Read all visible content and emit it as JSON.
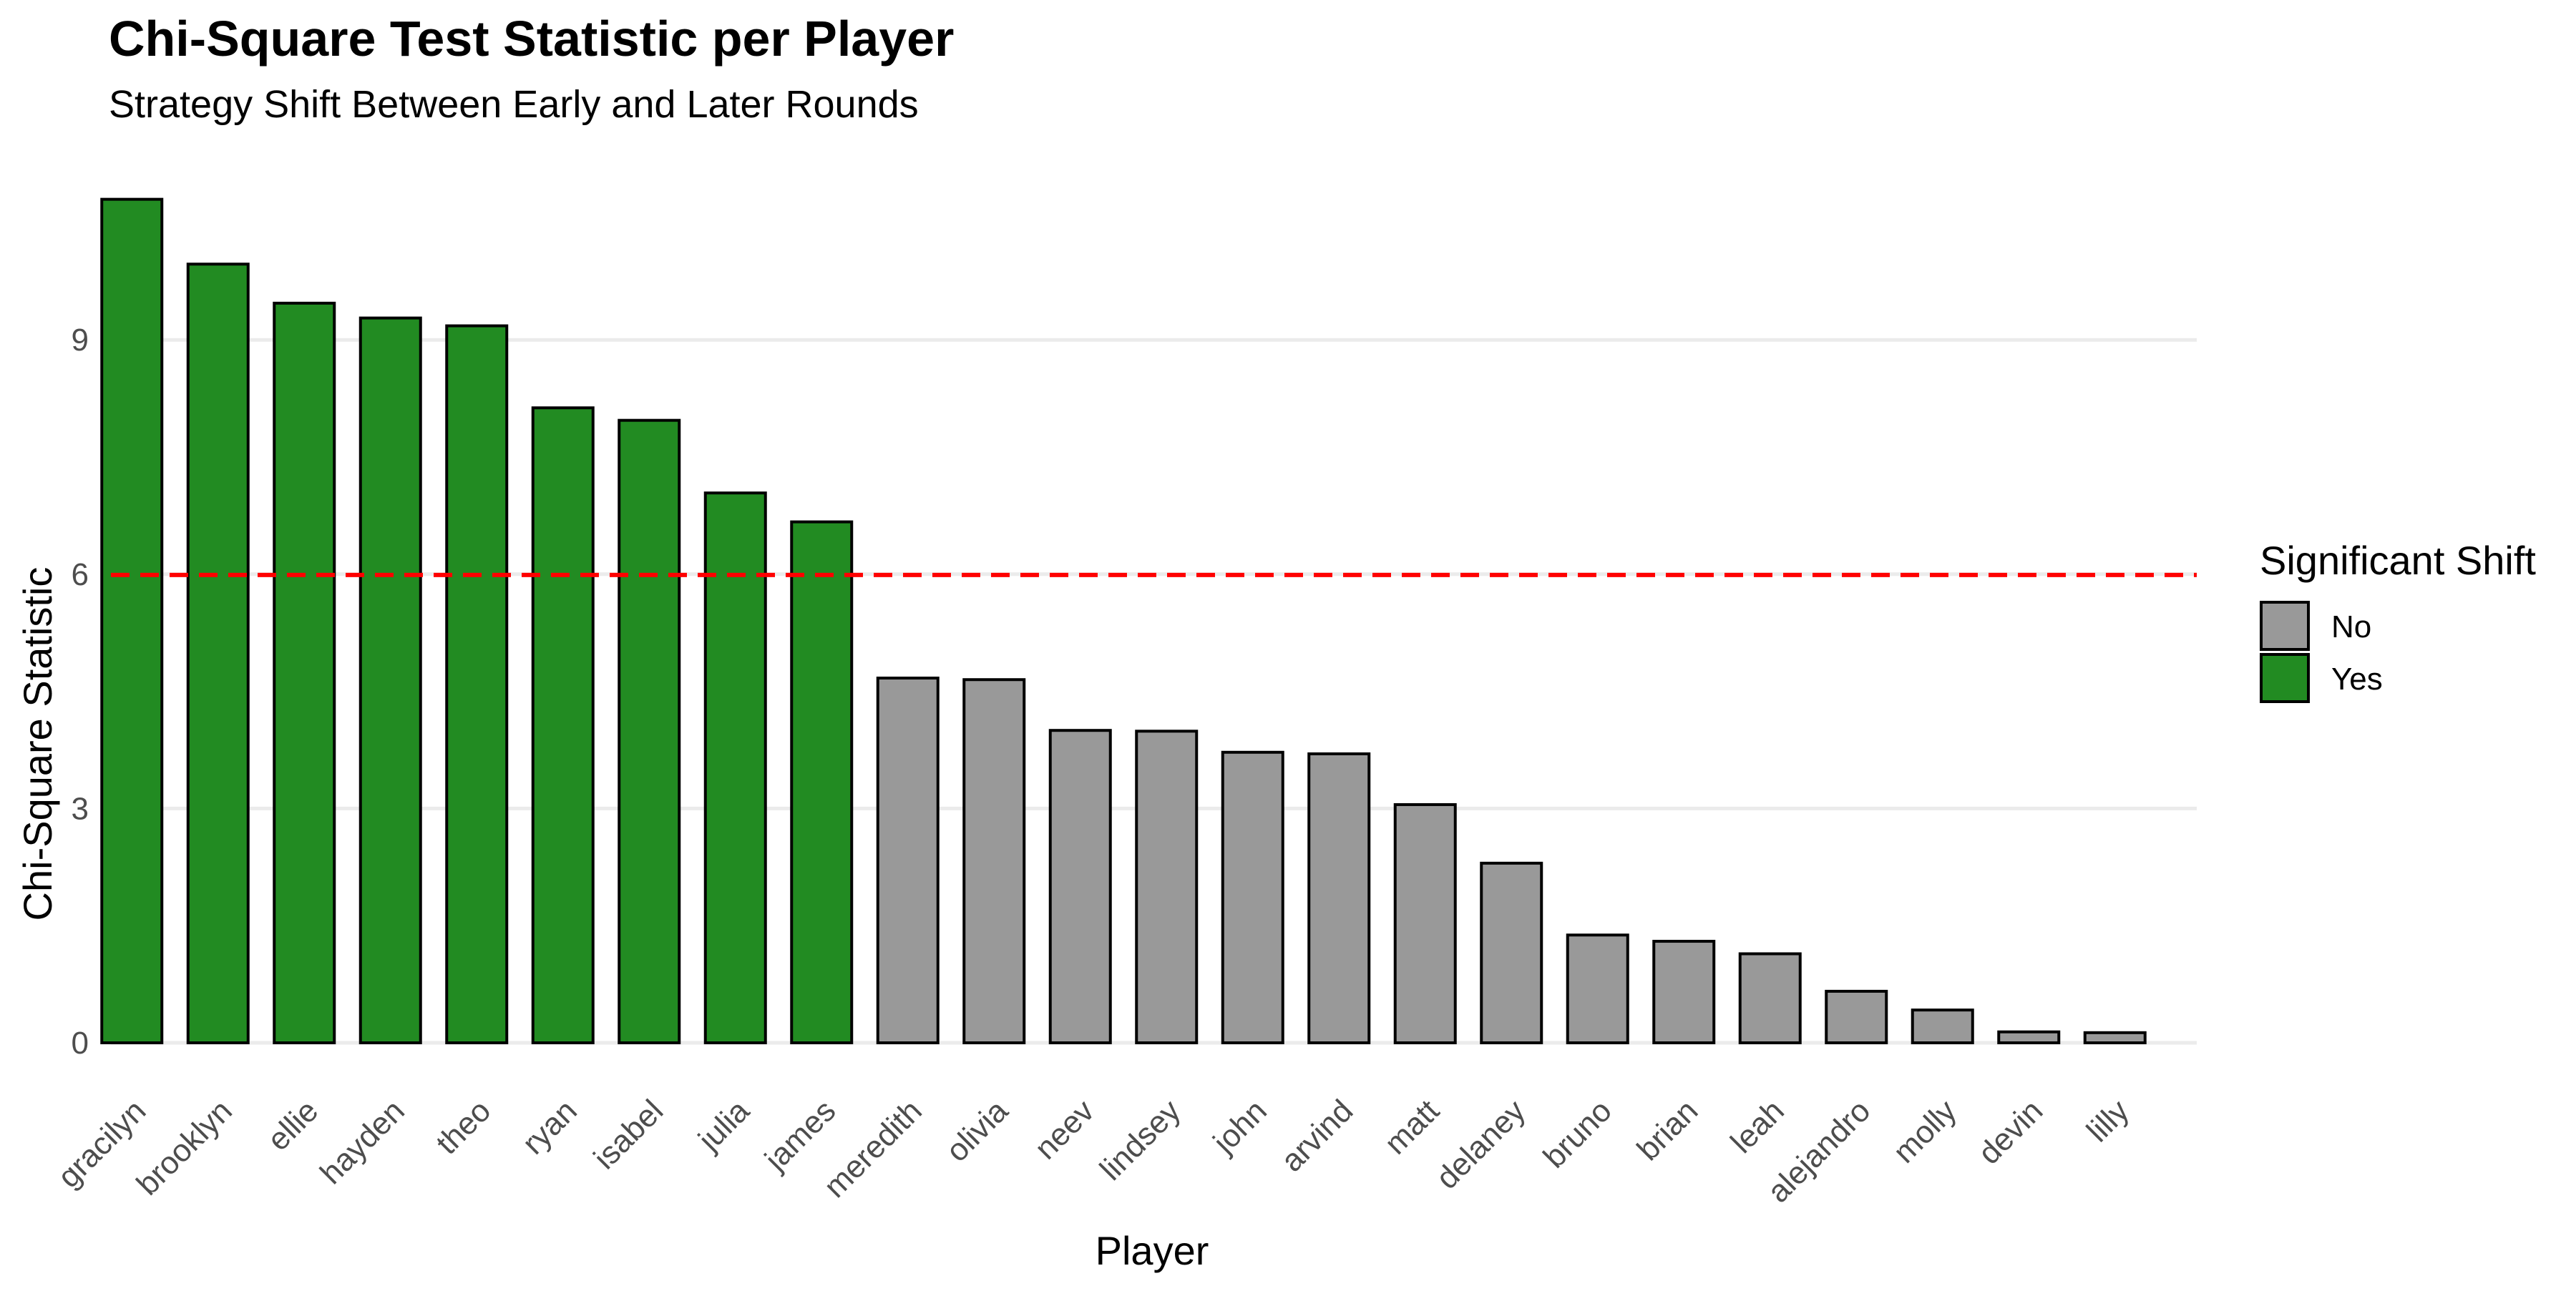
{
  "chart_data": {
    "type": "bar",
    "title": "Chi-Square Test Statistic per Player",
    "subtitle": "Strategy Shift Between Early and Later Rounds",
    "xlabel": "Player",
    "ylabel": "Chi-Square Statistic",
    "ylim": [
      0,
      11.3
    ],
    "yticks": [
      0,
      3,
      6,
      9
    ],
    "grid": "horizontal-major",
    "reference_line": {
      "y": 5.99,
      "color": "#ff0000",
      "style": "dashed"
    },
    "categories": [
      "gracilyn",
      "brooklyn",
      "ellie",
      "hayden",
      "theo",
      "ryan",
      "isabel",
      "julia",
      "james",
      "meredith",
      "olivia",
      "neev",
      "lindsey",
      "john",
      "arvind",
      "matt",
      "delaney",
      "bruno",
      "brian",
      "leah",
      "alejandro",
      "molly",
      "devin",
      "lilly"
    ],
    "values": [
      10.8,
      9.97,
      9.47,
      9.28,
      9.18,
      8.13,
      7.97,
      7.04,
      6.67,
      4.67,
      4.65,
      4.0,
      3.99,
      3.72,
      3.7,
      3.05,
      2.3,
      1.38,
      1.3,
      1.14,
      0.66,
      0.42,
      0.14,
      0.13
    ],
    "significant": [
      "Yes",
      "Yes",
      "Yes",
      "Yes",
      "Yes",
      "Yes",
      "Yes",
      "Yes",
      "Yes",
      "No",
      "No",
      "No",
      "No",
      "No",
      "No",
      "No",
      "No",
      "No",
      "No",
      "No",
      "No",
      "No",
      "No",
      "No"
    ],
    "legend": {
      "title": "Significant Shift",
      "position": "right",
      "entries": [
        {
          "label": "No",
          "color": "#999999"
        },
        {
          "label": "Yes",
          "color": "#228b22"
        }
      ]
    }
  }
}
